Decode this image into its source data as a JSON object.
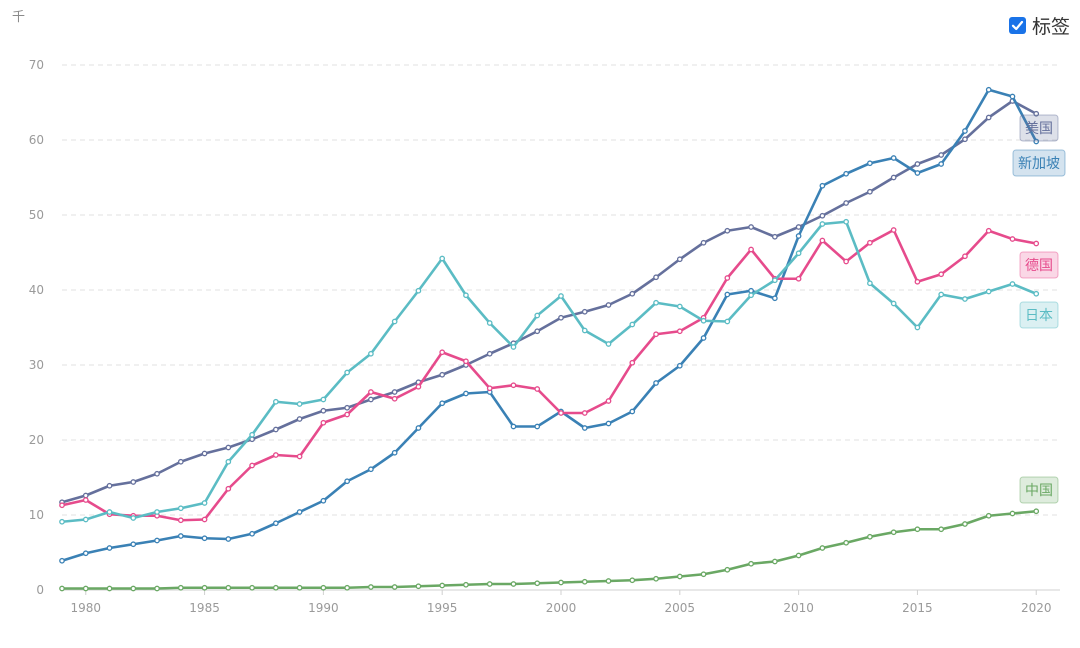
{
  "unit_label": "千",
  "legend_toggle": {
    "label": "标签",
    "checked": true
  },
  "chart_data": {
    "type": "line",
    "x": [
      1979,
      1980,
      1981,
      1982,
      1983,
      1984,
      1985,
      1986,
      1987,
      1988,
      1989,
      1990,
      1991,
      1992,
      1993,
      1994,
      1995,
      1996,
      1997,
      1998,
      1999,
      2000,
      2001,
      2002,
      2003,
      2004,
      2005,
      2006,
      2007,
      2008,
      2009,
      2010,
      2011,
      2012,
      2013,
      2014,
      2015,
      2016,
      2017,
      2018,
      2019,
      2020
    ],
    "x_ticks": [
      "1980",
      "1985",
      "1990",
      "1995",
      "2000",
      "2005",
      "2010",
      "2015",
      "2020"
    ],
    "y_ticks": [
      "0",
      "10",
      "20",
      "30",
      "40",
      "50",
      "60",
      "70"
    ],
    "ylim": [
      0,
      70
    ],
    "xlim": [
      1979,
      2021
    ],
    "grid": true,
    "series": [
      {
        "name": "美国",
        "color": "#65709c",
        "values": [
          11.7,
          12.6,
          13.9,
          14.4,
          15.5,
          17.1,
          18.2,
          19.0,
          20.1,
          21.4,
          22.8,
          23.9,
          24.3,
          25.4,
          26.4,
          27.7,
          28.7,
          30.0,
          31.5,
          32.9,
          34.5,
          36.3,
          37.1,
          38.0,
          39.5,
          41.7,
          44.1,
          46.3,
          47.9,
          48.4,
          47.1,
          48.4,
          49.9,
          51.6,
          53.1,
          55.0,
          56.8,
          58.0,
          60.1,
          63.0,
          65.2,
          63.5
        ]
      },
      {
        "name": "新加坡",
        "color": "#3a81b5",
        "values": [
          3.9,
          4.9,
          5.6,
          6.1,
          6.6,
          7.2,
          6.9,
          6.8,
          7.5,
          8.9,
          10.4,
          11.9,
          14.5,
          16.1,
          18.3,
          21.6,
          24.9,
          26.2,
          26.4,
          21.8,
          21.8,
          23.8,
          21.6,
          22.2,
          23.8,
          27.6,
          29.9,
          33.6,
          39.4,
          39.9,
          38.9,
          47.2,
          53.9,
          55.5,
          56.9,
          57.6,
          55.6,
          56.8,
          61.2,
          66.7,
          65.8,
          59.8
        ]
      },
      {
        "name": "德国",
        "color": "#e64b8c",
        "values": [
          11.3,
          12.0,
          10.1,
          9.9,
          9.9,
          9.3,
          9.4,
          13.5,
          16.6,
          18.0,
          17.8,
          22.3,
          23.4,
          26.4,
          25.5,
          27.1,
          31.7,
          30.5,
          26.9,
          27.3,
          26.8,
          23.6,
          23.6,
          25.2,
          30.3,
          34.1,
          34.5,
          36.3,
          41.6,
          45.4,
          41.5,
          41.5,
          46.6,
          43.8,
          46.3,
          48.0,
          41.1,
          42.1,
          44.5,
          47.9,
          46.8,
          46.2
        ]
      },
      {
        "name": "日本",
        "color": "#5bbcc4",
        "values": [
          9.1,
          9.4,
          10.4,
          9.6,
          10.4,
          10.9,
          11.6,
          17.1,
          20.7,
          25.1,
          24.8,
          25.4,
          29.0,
          31.5,
          35.8,
          39.9,
          44.2,
          39.3,
          35.6,
          32.4,
          36.6,
          39.2,
          34.6,
          32.8,
          35.4,
          38.3,
          37.8,
          35.9,
          35.8,
          39.3,
          41.3,
          44.9,
          48.8,
          49.1,
          40.9,
          38.2,
          35.0,
          39.4,
          38.8,
          39.8,
          40.8,
          39.5
        ]
      },
      {
        "name": "中国",
        "color": "#6aa864",
        "values": [
          0.2,
          0.2,
          0.2,
          0.2,
          0.2,
          0.3,
          0.3,
          0.3,
          0.3,
          0.3,
          0.3,
          0.3,
          0.3,
          0.4,
          0.4,
          0.5,
          0.6,
          0.7,
          0.8,
          0.8,
          0.9,
          1.0,
          1.1,
          1.2,
          1.3,
          1.5,
          1.8,
          2.1,
          2.7,
          3.5,
          3.8,
          4.6,
          5.6,
          6.3,
          7.1,
          7.7,
          8.1,
          8.1,
          8.8,
          9.9,
          10.2,
          10.5
        ]
      }
    ]
  }
}
